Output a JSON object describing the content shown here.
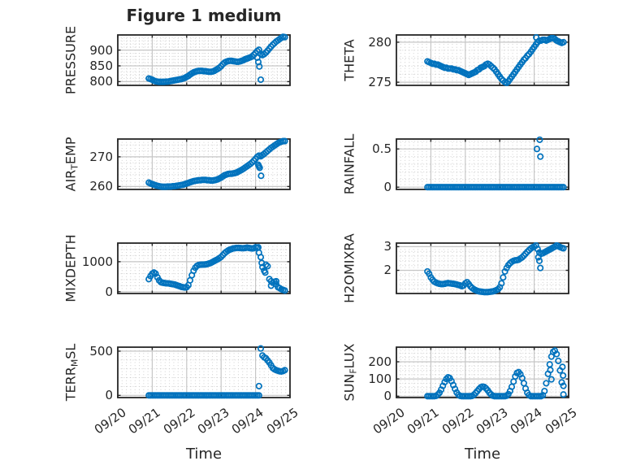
{
  "figure": {
    "title": "Figure 1 medium",
    "xlabel": "Time",
    "bg_color": "#ffffff",
    "marker_color": "#0072BD",
    "axis_color": "#262626",
    "grid_major_color": "#c6c6c6",
    "grid_minor_color": "#cbcbcb",
    "text_color": "#262626",
    "marker_style": "open-circle"
  },
  "x_axis": {
    "label": "Time",
    "tick_labels": [
      "09/20",
      "09/21",
      "09/22",
      "09/23",
      "09/24",
      "09/25"
    ],
    "lim": [
      0,
      5
    ],
    "minor_step": 0.125
  },
  "chart_data": [
    {
      "id": "pressure",
      "type": "scatter",
      "ylabel": "PRESSURE",
      "ylabel_parts": [
        "PRESSURE",
        "",
        ""
      ],
      "yticks": [
        800,
        850,
        900
      ],
      "ylim": [
        788,
        948
      ],
      "y_minor_step": 10,
      "x_start": 0.9,
      "x_step": 0.05,
      "y": [
        810,
        808,
        806,
        803,
        801,
        800,
        799,
        799,
        799,
        799,
        800,
        800,
        801,
        802,
        803,
        804,
        805,
        806,
        807,
        808,
        810,
        812,
        815,
        818,
        822,
        826,
        829,
        831,
        833,
        834,
        834,
        834,
        833,
        833,
        832,
        831,
        831,
        832,
        834,
        837,
        840,
        844,
        849,
        855,
        860,
        863,
        865,
        866,
        866,
        865,
        864,
        863,
        863,
        864,
        866,
        868,
        871,
        873,
        875,
        877,
        880,
        885,
        891,
        897,
        901,
        888,
        884,
        887,
        892,
        898,
        905,
        911,
        917,
        922,
        927,
        931,
        935,
        939,
        942,
        941
      ],
      "extra_points": [
        [
          4.05,
          876
        ],
        [
          4.08,
          862
        ],
        [
          4.11,
          848
        ],
        [
          4.15,
          806
        ]
      ]
    },
    {
      "id": "theta",
      "type": "scatter",
      "ylabel": "THETA",
      "ylabel_parts": [
        "THETA",
        "",
        ""
      ],
      "yticks": [
        275,
        280
      ],
      "ylim": [
        274.6,
        280.9
      ],
      "y_minor_step": 1,
      "x_start": 0.9,
      "x_step": 0.05,
      "y": [
        277.6,
        277.5,
        277.4,
        277.3,
        277.3,
        277.2,
        277.2,
        277.1,
        277.0,
        276.9,
        276.8,
        276.8,
        276.7,
        276.7,
        276.7,
        276.6,
        276.6,
        276.5,
        276.5,
        276.4,
        276.3,
        276.2,
        276.1,
        276.0,
        275.9,
        276.0,
        276.1,
        276.2,
        276.3,
        276.5,
        276.6,
        276.8,
        276.9,
        277.0,
        277.2,
        277.3,
        277.2,
        277.0,
        276.8,
        276.6,
        276.3,
        276.0,
        275.7,
        275.4,
        275.2,
        275.0,
        274.9,
        275.1,
        275.4,
        275.7,
        276.0,
        276.3,
        276.6,
        276.9,
        277.2,
        277.5,
        277.8,
        278.0,
        278.3,
        278.5,
        278.8,
        279.1,
        279.4,
        279.7,
        280.0,
        280.2,
        280.2,
        280.3,
        280.3,
        280.2,
        280.3,
        280.4,
        280.5,
        280.5,
        280.4,
        280.2,
        280.1,
        280.0,
        279.9,
        280.0
      ],
      "extra_points": [
        [
          4.06,
          280.6
        ]
      ]
    },
    {
      "id": "air_temp",
      "type": "scatter",
      "ylabel": "AIR_TEMP",
      "ylabel_parts": [
        "AIR",
        "T",
        "EMP"
      ],
      "yticks": [
        260,
        270
      ],
      "ylim": [
        259,
        276
      ],
      "y_minor_step": 2,
      "x_start": 0.9,
      "x_step": 0.05,
      "y": [
        261.3,
        261.0,
        260.8,
        260.6,
        260.4,
        260.2,
        260.1,
        260.0,
        259.9,
        259.9,
        259.9,
        260.0,
        260.0,
        260.0,
        260.1,
        260.1,
        260.2,
        260.3,
        260.4,
        260.5,
        260.6,
        260.8,
        261.0,
        261.2,
        261.4,
        261.6,
        261.8,
        261.9,
        262.0,
        262.1,
        262.1,
        262.2,
        262.2,
        262.2,
        262.1,
        262.1,
        262.0,
        262.0,
        262.1,
        262.2,
        262.4,
        262.7,
        263.0,
        263.4,
        263.8,
        264.0,
        264.2,
        264.3,
        264.3,
        264.4,
        264.5,
        264.7,
        265.0,
        265.3,
        265.6,
        266.0,
        266.4,
        266.8,
        267.2,
        267.6,
        268.1,
        268.7,
        269.3,
        270.0,
        270.4,
        270.2,
        270.6,
        271.0,
        271.5,
        272.0,
        272.5,
        273.0,
        273.4,
        273.8,
        274.2,
        274.6,
        274.9,
        275.1,
        275.3,
        275.3
      ],
      "extra_points": [
        [
          4.08,
          267.3
        ],
        [
          4.1,
          266.8
        ],
        [
          4.12,
          266.3
        ],
        [
          4.16,
          263.6
        ]
      ]
    },
    {
      "id": "rainfall",
      "type": "scatter",
      "ylabel": "RAINFALL",
      "ylabel_parts": [
        "RAINFALL",
        "",
        ""
      ],
      "yticks": [
        0,
        0.5
      ],
      "ylim": [
        -0.03,
        0.63
      ],
      "y_minor_step": 0.1,
      "x_start": 0.9,
      "x_step": 0.05,
      "y": [
        0,
        0,
        0,
        0,
        0,
        0,
        0,
        0,
        0,
        0,
        0,
        0,
        0,
        0,
        0,
        0,
        0,
        0,
        0,
        0,
        0,
        0,
        0,
        0,
        0,
        0,
        0,
        0,
        0,
        0,
        0,
        0,
        0,
        0,
        0,
        0,
        0,
        0,
        0,
        0,
        0,
        0,
        0,
        0,
        0,
        0,
        0,
        0,
        0,
        0,
        0,
        0,
        0,
        0,
        0,
        0,
        0,
        0,
        0,
        0,
        0,
        0,
        0,
        0,
        0,
        0,
        0,
        0,
        0,
        0,
        0,
        0,
        0,
        0,
        0,
        0,
        0,
        0,
        0,
        0
      ],
      "extra_points": [
        [
          4.08,
          0.5
        ],
        [
          4.16,
          0.62
        ],
        [
          4.18,
          0.4
        ]
      ]
    },
    {
      "id": "mixdepth",
      "type": "scatter",
      "ylabel": "MIXDEPTH",
      "ylabel_parts": [
        "MIXDEPTH",
        "",
        ""
      ],
      "yticks": [
        0,
        1000
      ],
      "ylim": [
        -60,
        1620
      ],
      "y_minor_step": 200,
      "x_start": 0.9,
      "x_step": 0.05,
      "y": [
        420,
        520,
        600,
        640,
        600,
        480,
        380,
        320,
        300,
        290,
        280,
        280,
        270,
        260,
        250,
        240,
        220,
        200,
        180,
        160,
        150,
        140,
        150,
        220,
        380,
        550,
        700,
        800,
        860,
        890,
        900,
        905,
        905,
        910,
        920,
        940,
        960,
        990,
        1020,
        1050,
        1080,
        1120,
        1160,
        1220,
        1280,
        1330,
        1370,
        1400,
        1420,
        1440,
        1450,
        1460,
        1460,
        1455,
        1450,
        1450,
        1455,
        1470,
        1460,
        1450,
        1440,
        1450,
        1480,
        1460,
        1300,
        1150,
        820,
        700,
        900,
        850,
        420,
        350,
        300,
        330,
        250,
        150,
        120,
        80,
        60,
        40
      ],
      "extra_points": [
        [
          4.08,
          1480
        ],
        [
          4.18,
          960
        ],
        [
          4.28,
          640
        ],
        [
          4.45,
          200
        ],
        [
          4.6,
          350
        ]
      ]
    },
    {
      "id": "h2omixra",
      "type": "scatter",
      "ylabel": "H2OMIXRA",
      "ylabel_parts": [
        "H2OMIXRA",
        "",
        ""
      ],
      "yticks": [
        2,
        3
      ],
      "ylim": [
        1.02,
        3.15
      ],
      "y_minor_step": 0.2,
      "x_start": 0.9,
      "x_step": 0.05,
      "y": [
        1.95,
        1.85,
        1.7,
        1.6,
        1.52,
        1.48,
        1.45,
        1.43,
        1.42,
        1.42,
        1.43,
        1.45,
        1.46,
        1.45,
        1.44,
        1.43,
        1.42,
        1.4,
        1.38,
        1.36,
        1.33,
        1.36,
        1.45,
        1.5,
        1.42,
        1.32,
        1.25,
        1.2,
        1.16,
        1.13,
        1.11,
        1.1,
        1.09,
        1.08,
        1.08,
        1.08,
        1.09,
        1.1,
        1.11,
        1.13,
        1.16,
        1.2,
        1.28,
        1.45,
        1.7,
        1.95,
        2.1,
        2.22,
        2.3,
        2.36,
        2.4,
        2.42,
        2.43,
        2.45,
        2.5,
        2.55,
        2.62,
        2.7,
        2.78,
        2.85,
        2.92,
        2.97,
        3.0,
        3.05,
        2.9,
        2.75,
        2.7,
        2.72,
        2.76,
        2.8,
        2.84,
        2.88,
        2.92,
        2.96,
        3.0,
        3.05,
        3.02,
        2.98,
        2.95,
        2.93
      ],
      "extra_points": [
        [
          4.12,
          2.55
        ],
        [
          4.15,
          2.4
        ],
        [
          4.18,
          2.1
        ]
      ]
    },
    {
      "id": "terr_msl",
      "type": "scatter",
      "ylabel": "TERR_MSL",
      "ylabel_parts": [
        "TERR",
        "M",
        "SL"
      ],
      "yticks": [
        0,
        500
      ],
      "ylim": [
        -25,
        545
      ],
      "y_minor_step": 100,
      "x_start": 0.9,
      "x_step": 0.05,
      "y": [
        0,
        0,
        0,
        0,
        0,
        0,
        0,
        0,
        0,
        0,
        0,
        0,
        0,
        0,
        0,
        0,
        0,
        0,
        0,
        0,
        0,
        0,
        0,
        0,
        0,
        0,
        0,
        0,
        0,
        0,
        0,
        0,
        0,
        0,
        0,
        0,
        0,
        0,
        0,
        0,
        0,
        0,
        0,
        0,
        0,
        0,
        0,
        0,
        0,
        0,
        0,
        0,
        0,
        0,
        0,
        0,
        0,
        0,
        0,
        0,
        0,
        0,
        0,
        0,
        0,
        530,
        450,
        430,
        420,
        395,
        370,
        340,
        310,
        295,
        285,
        278,
        272,
        270,
        275,
        285
      ],
      "extra_points": [
        [
          4.1,
          105
        ]
      ]
    },
    {
      "id": "sun_flux",
      "type": "scatter",
      "ylabel": "SUN_FLUX",
      "ylabel_parts": [
        "SUN",
        "F",
        "LUX"
      ],
      "yticks": [
        0,
        100,
        200
      ],
      "ylim": [
        -8,
        285
      ],
      "y_minor_step": 25,
      "x_start": 0.9,
      "x_step": 0.05,
      "y": [
        0,
        0,
        0,
        0,
        0,
        2,
        8,
        20,
        38,
        60,
        82,
        100,
        110,
        105,
        88,
        65,
        42,
        22,
        8,
        2,
        0,
        0,
        0,
        0,
        0,
        0,
        2,
        8,
        18,
        30,
        42,
        52,
        56,
        54,
        46,
        34,
        20,
        10,
        3,
        0,
        0,
        0,
        0,
        0,
        0,
        0,
        3,
        12,
        30,
        55,
        85,
        115,
        135,
        140,
        128,
        105,
        75,
        45,
        20,
        6,
        0,
        0,
        0,
        0,
        0,
        0,
        0,
        5,
        30,
        75,
        130,
        185,
        230,
        258,
        265,
        245,
        205,
        150,
        80,
        10
      ],
      "extra_points": [
        [
          4.47,
          152
        ],
        [
          4.5,
          98
        ],
        [
          4.82,
          170
        ],
        [
          4.84,
          120
        ],
        [
          4.85,
          60
        ]
      ]
    }
  ]
}
